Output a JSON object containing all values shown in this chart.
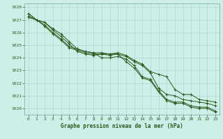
{
  "title": "Graphe pression niveau de la mer (hPa)",
  "bg_color": "#ceeee8",
  "grid_color": "#aad8d0",
  "line_color": "#2d5a1b",
  "text_color": "#2d5a1b",
  "border_color": "#6aaa99",
  "xlim": [
    -0.5,
    23.5
  ],
  "ylim": [
    1019.5,
    1028.3
  ],
  "yticks": [
    1020,
    1021,
    1022,
    1023,
    1024,
    1025,
    1026,
    1027,
    1028
  ],
  "xticks": [
    0,
    1,
    2,
    3,
    4,
    5,
    6,
    7,
    8,
    9,
    10,
    11,
    12,
    13,
    14,
    15,
    16,
    17,
    18,
    19,
    20,
    21,
    22,
    23
  ],
  "series": [
    [
      1027.5,
      1027.0,
      1026.8,
      1026.3,
      1025.9,
      1025.3,
      1024.7,
      1024.5,
      1024.4,
      1024.0,
      1024.0,
      1024.1,
      1023.9,
      1023.4,
      1022.5,
      1022.3,
      1021.4,
      1020.7,
      1020.5,
      1020.5,
      1020.2,
      1020.1,
      1020.1,
      1019.8
    ],
    [
      1027.5,
      1027.0,
      1026.8,
      1026.2,
      1025.7,
      1025.1,
      1024.5,
      1024.3,
      1024.2,
      1024.3,
      1024.3,
      1024.3,
      1023.7,
      1023.2,
      1022.4,
      1022.2,
      1021.3,
      1020.6,
      1020.4,
      1020.4,
      1020.1,
      1020.0,
      1020.0,
      1019.7
    ],
    [
      1027.3,
      1027.0,
      1026.6,
      1026.0,
      1025.5,
      1024.9,
      1024.7,
      1024.5,
      1024.4,
      1024.4,
      1024.3,
      1024.4,
      1024.2,
      1023.8,
      1023.5,
      1022.9,
      1022.7,
      1022.5,
      1021.5,
      1021.1,
      1021.1,
      1020.7,
      1020.6,
      1020.5
    ],
    [
      1027.2,
      1027.0,
      1026.5,
      1025.9,
      1025.4,
      1024.8,
      1024.6,
      1024.4,
      1024.3,
      1024.3,
      1024.2,
      1024.3,
      1024.1,
      1023.7,
      1023.4,
      1022.8,
      1021.6,
      1021.1,
      1021.0,
      1020.7,
      1020.6,
      1020.5,
      1020.4,
      1020.2
    ]
  ]
}
